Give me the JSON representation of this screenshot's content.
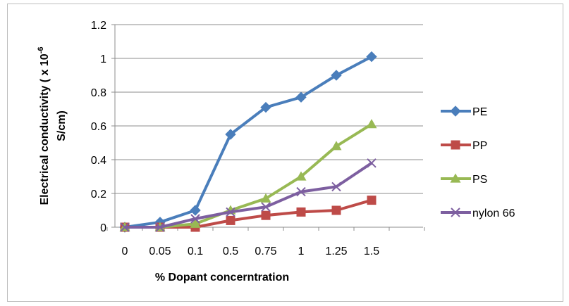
{
  "chart_data": {
    "type": "line",
    "categories": [
      "0",
      "0.05",
      "0.1",
      "0.5",
      "0.75",
      "1",
      "1.25",
      "1.5"
    ],
    "ylim": [
      0,
      1.2
    ],
    "yticks": [
      "0",
      "0.2",
      "0.4",
      "0.6",
      "0.8",
      "1",
      "1.2"
    ],
    "xlabel": "% Dopant concerntration",
    "ylabel_line1": "Electrical conductivity ( x 10",
    "ylabel_exp": "-6",
    "ylabel_line2": "S/cm)",
    "grid": true,
    "legend_position": "right",
    "series": [
      {
        "name": "PE",
        "color": "#4a7ebb",
        "marker": "diamond",
        "values": [
          0,
          0.03,
          0.1,
          0.55,
          0.71,
          0.77,
          0.9,
          1.01
        ]
      },
      {
        "name": "PP",
        "color": "#be4b48",
        "marker": "square",
        "values": [
          0,
          0,
          0,
          0.04,
          0.07,
          0.09,
          0.1,
          0.16
        ]
      },
      {
        "name": "PS",
        "color": "#98b954",
        "marker": "triangle",
        "values": [
          0,
          0,
          0.02,
          0.1,
          0.17,
          0.3,
          0.48,
          0.61
        ]
      },
      {
        "name": "nylon 66",
        "color": "#7d5fa0",
        "marker": "x",
        "values": [
          0,
          0,
          0.05,
          0.09,
          0.12,
          0.21,
          0.24,
          0.38
        ]
      }
    ]
  }
}
